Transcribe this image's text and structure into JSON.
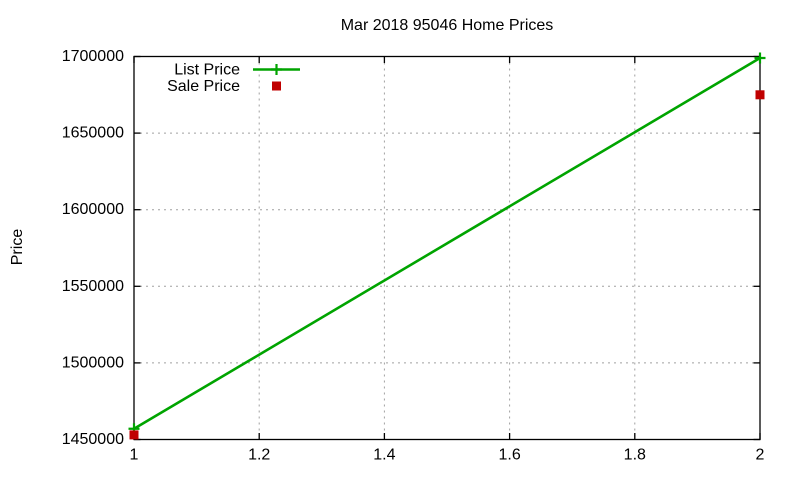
{
  "chart_data": {
    "type": "line",
    "title": "Mar 2018 95046 Home Prices",
    "xlabel": "",
    "ylabel": "Price",
    "x": [
      1,
      2
    ],
    "series": [
      {
        "name": "List Price",
        "style": "line",
        "marker": "plus",
        "color": "#00a400",
        "values": [
          1457000,
          1699000
        ]
      },
      {
        "name": "Sale Price",
        "style": "scatter",
        "marker": "square",
        "color": "#c00000",
        "values": [
          1453000,
          1675000
        ]
      }
    ],
    "xlim": [
      1,
      2
    ],
    "ylim": [
      1450000,
      1700000
    ],
    "xticks": [
      1,
      1.2,
      1.4,
      1.6,
      1.8,
      2
    ],
    "xtick_labels": [
      "1",
      "1.2",
      "1.4",
      "1.6",
      "1.8",
      "2"
    ],
    "yticks": [
      1450000,
      1500000,
      1550000,
      1600000,
      1650000,
      1700000
    ],
    "ytick_labels": [
      "1450000",
      "1500000",
      "1550000",
      "1600000",
      "1650000",
      "1700000"
    ],
    "grid": true,
    "grid_style": "dashed-gray",
    "legend_position": "top-left-inside",
    "colors": {
      "axis": "#000000",
      "grid": "#a0a0a0",
      "text": "#000000",
      "background": "#ffffff"
    }
  }
}
